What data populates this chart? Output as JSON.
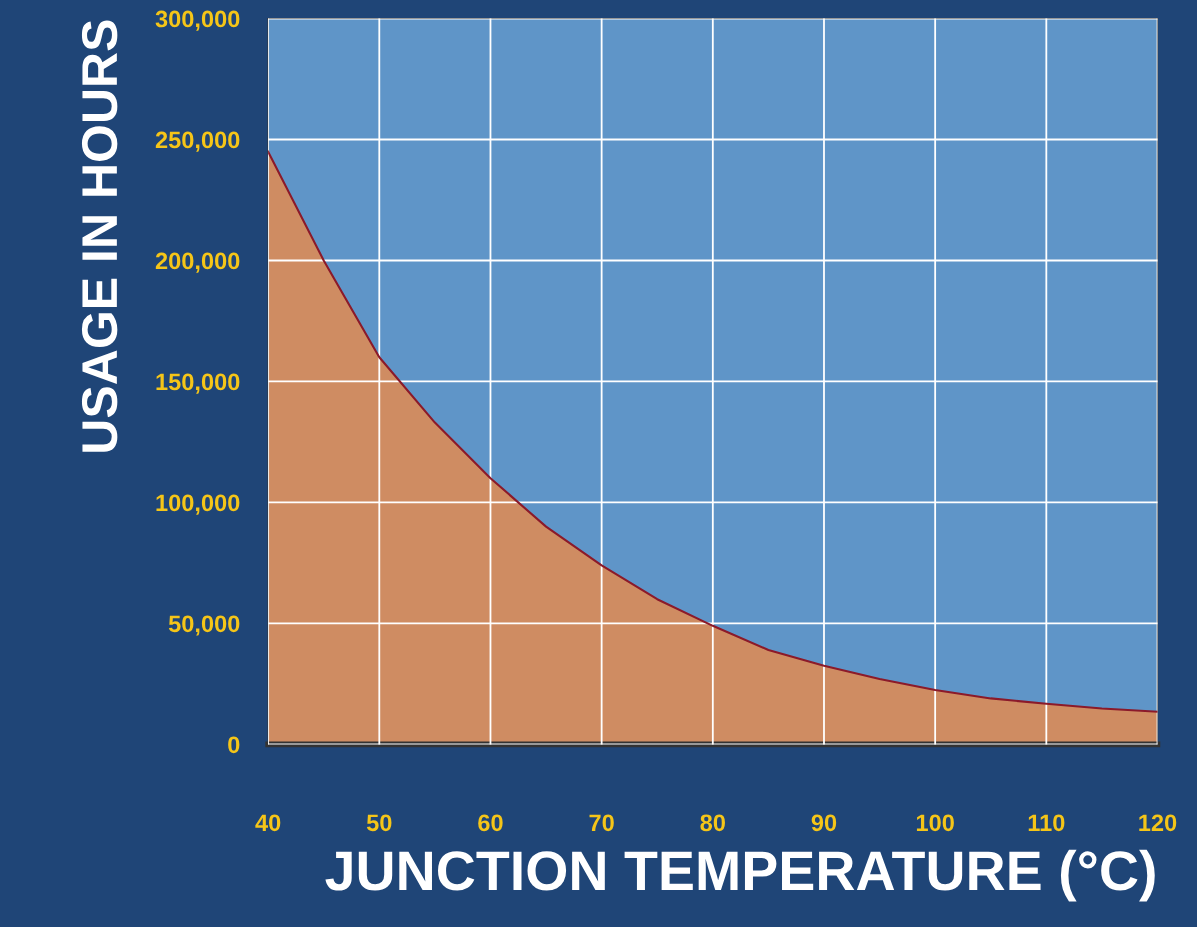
{
  "chart_data": {
    "type": "area",
    "xlabel": "JUNCTION TEMPERATURE (°C)",
    "ylabel": "USAGE IN HOURS",
    "x": [
      40,
      45,
      50,
      55,
      60,
      65,
      70,
      75,
      80,
      85,
      90,
      95,
      100,
      105,
      110,
      115,
      120
    ],
    "series": [
      {
        "color": "#cf8c62",
        "values": [
          245000,
          200000,
          160000,
          133000,
          110000,
          90000,
          74000,
          60000,
          49000,
          39000,
          32500,
          27000,
          22500,
          19000,
          16800,
          14800,
          13500
        ]
      }
    ],
    "xlim": [
      40,
      120
    ],
    "xticks": [
      40,
      50,
      60,
      70,
      80,
      90,
      100,
      110,
      120
    ],
    "ylim": [
      0,
      300000
    ],
    "yticks": [
      {
        "value": 0,
        "label": "0"
      },
      {
        "value": 50000,
        "label": "50,000"
      },
      {
        "value": 100000,
        "label": "100,000"
      },
      {
        "value": 150000,
        "label": "150,000"
      },
      {
        "value": 200000,
        "label": "200,000"
      },
      {
        "value": 250000,
        "label": "250,000"
      },
      {
        "value": 300000,
        "label": "300,000"
      }
    ],
    "grid": true
  }
}
